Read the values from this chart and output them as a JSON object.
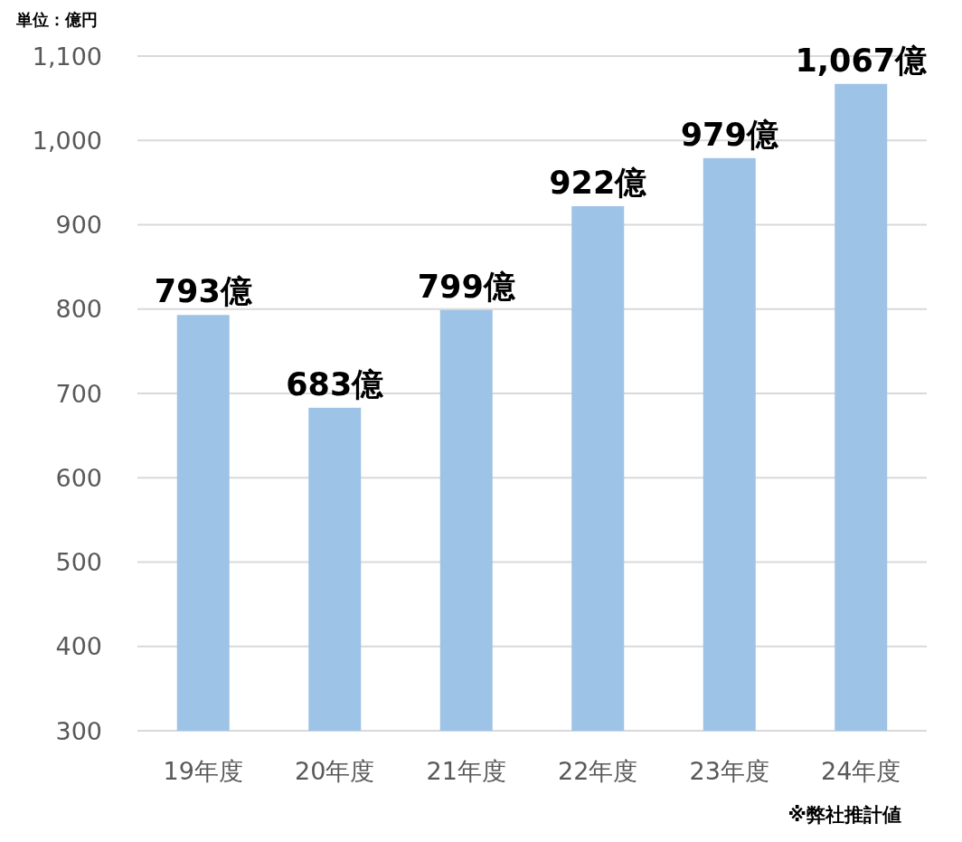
{
  "chart_data": {
    "type": "bar",
    "ylabel": "単位：億円",
    "categories": [
      "19年度",
      "20年度",
      "21年度",
      "22年度",
      "23年度",
      "24年度"
    ],
    "values": [
      793,
      683,
      799,
      922,
      979,
      1067
    ],
    "color": "#9dc3e6",
    "value_labels": [
      "793億",
      "683億",
      "799億",
      "922億",
      "979億",
      "1,067億"
    ],
    "ylim": [
      300,
      1100
    ],
    "yticks": [
      300,
      400,
      500,
      600,
      700,
      800,
      900,
      {
        "value": 1000,
        "label": "1,000"
      },
      {
        "value": 1100,
        "label": "1,100"
      }
    ],
    "grid": "y",
    "annotations": [
      "※弊社推計値"
    ]
  }
}
